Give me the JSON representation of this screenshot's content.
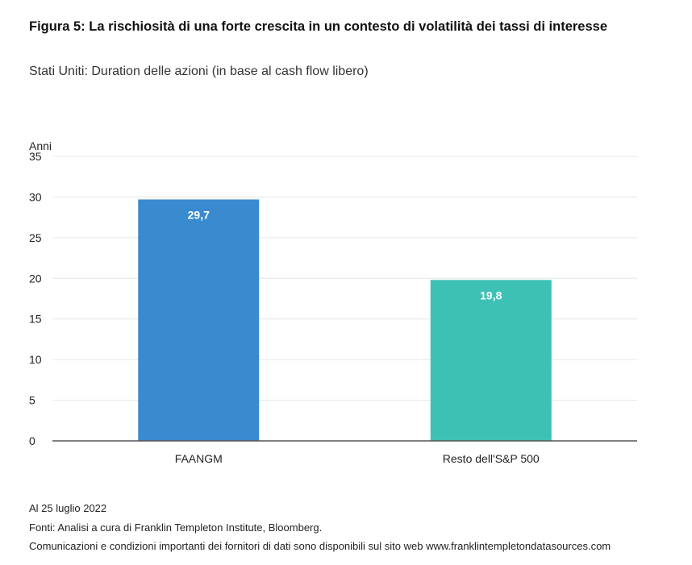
{
  "header": {
    "title": "Figura 5: La rischiosità di una forte crescita in un contesto di volatilità dei tassi di interesse",
    "subtitle": "Stati Uniti: Duration delle azioni (in base al cash flow libero)"
  },
  "chart_data": {
    "type": "bar",
    "ylabel": "Anni",
    "xlabel": "",
    "ylim": [
      0,
      35
    ],
    "yticks": [
      "0",
      "5",
      "10",
      "15",
      "20",
      "25",
      "30",
      "35"
    ],
    "grid": true,
    "categories": [
      "FAANGM",
      "Resto dell'S&P 500"
    ],
    "values": [
      29.7,
      19.8
    ],
    "value_labels": [
      "29,7",
      "19,8"
    ],
    "colors": [
      "#3a8ad0",
      "#3dc1b5"
    ]
  },
  "footer": {
    "date": "Al 25 luglio 2022",
    "sources": "Fonti: Analisi a cura di Franklin Templeton Institute, Bloomberg.",
    "notice": "Comunicazioni e condizioni importanti dei fornitori di dati sono disponibili sul sito web www.franklintempletondatasources.com"
  }
}
